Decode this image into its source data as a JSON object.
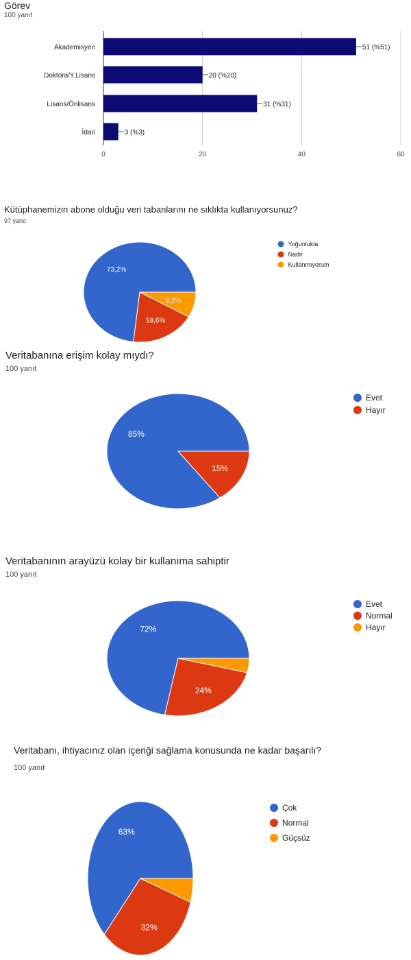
{
  "chart_data": [
    {
      "type": "bar",
      "orientation": "horizontal",
      "title": "Görev",
      "subtitle": "100 yanıt",
      "categories": [
        "Akademisyen",
        "Doktora/Y.Lisans",
        "Lisans/Önlisans",
        "İdari"
      ],
      "values": [
        51,
        20,
        31,
        3
      ],
      "value_labels": [
        "51 (%51)",
        "20 (%20)",
        "31 (%31)",
        "3 (%3)"
      ],
      "xlim": [
        0,
        60
      ],
      "xticks": [
        0,
        20,
        40,
        60
      ],
      "grid": true,
      "colors": {
        "bar": "#0b0b73"
      }
    },
    {
      "type": "pie",
      "title": "Kütüphanemizin abone olduğu veri tabanlarını ne sıklıkta kullanıyorsunuz?",
      "subtitle": "97 yanıt",
      "slices": [
        {
          "label": "Yoğunlukla",
          "value": 73.2,
          "text": "73,2%",
          "color": "#3366cc"
        },
        {
          "label": "Nadir",
          "value": 18.6,
          "text": "18,6%",
          "color": "#dc3912"
        },
        {
          "label": "Kullanmıyorum",
          "value": 8.2,
          "text": "8,2%",
          "color": "#ff9900"
        }
      ],
      "legend": "right"
    },
    {
      "type": "pie",
      "title": "Veritabanına erişim kolay mıydı?",
      "subtitle": "100 yanıt",
      "slices": [
        {
          "label": "Evet",
          "value": 85,
          "text": "85%",
          "color": "#3366cc"
        },
        {
          "label": "Hayır",
          "value": 15,
          "text": "15%",
          "color": "#dc3912"
        }
      ],
      "legend": "right"
    },
    {
      "type": "pie",
      "title": "Veritabanının arayüzü kolay bir kullanıma sahiptir",
      "subtitle": "100 yanıt",
      "slices": [
        {
          "label": "Evet",
          "value": 72,
          "text": "72%",
          "color": "#3366cc"
        },
        {
          "label": "Normal",
          "value": 24,
          "text": "24%",
          "color": "#dc3912"
        },
        {
          "label": "Hayır",
          "value": 4,
          "text": "",
          "color": "#ff9900"
        }
      ],
      "legend": "right"
    },
    {
      "type": "pie",
      "title": "Veritabanı, ihtiyacınız olan içeriği sağlama konusunda ne kadar başarılı?",
      "subtitle": "100 yanıt",
      "slices": [
        {
          "label": "Çok",
          "value": 63,
          "text": "63%",
          "color": "#3366cc"
        },
        {
          "label": "Normal",
          "value": 32,
          "text": "32%",
          "color": "#dc3912"
        },
        {
          "label": "Güçsüz",
          "value": 5,
          "text": "",
          "color": "#ff9900"
        }
      ],
      "legend": "right"
    }
  ]
}
